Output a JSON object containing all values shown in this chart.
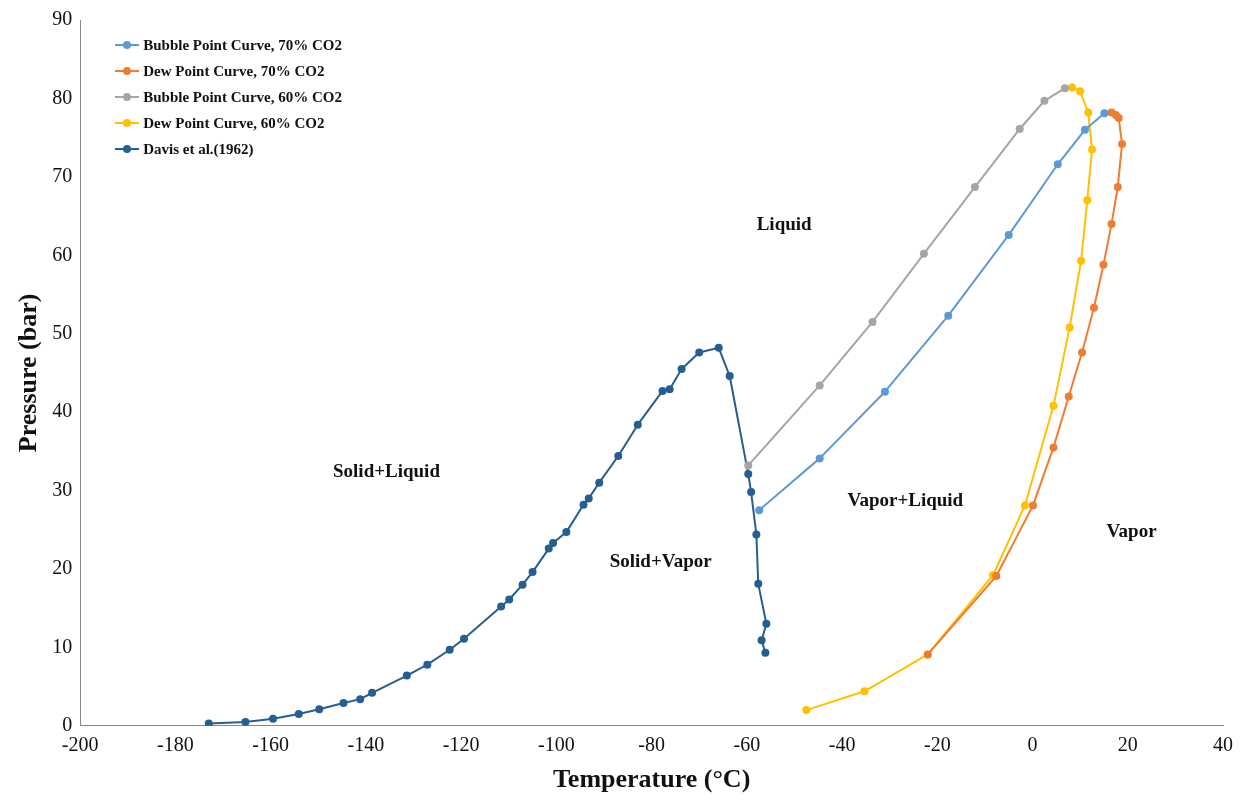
{
  "chart_data": {
    "type": "line",
    "xlabel": "Temperature (°C)",
    "ylabel": "Pressure (bar)",
    "xlim": [
      -200,
      40
    ],
    "xticks": [
      -200,
      -180,
      -160,
      -140,
      -120,
      -100,
      -80,
      -60,
      -40,
      -20,
      0,
      20,
      40
    ],
    "ylim": [
      0,
      90
    ],
    "yticks": [
      0,
      10,
      20,
      30,
      40,
      50,
      60,
      70,
      80,
      90
    ],
    "grid": false,
    "legend": "top left",
    "marker": "circle",
    "line_style": "solid",
    "series": [
      {
        "name": "Bubble Point Curve, 70% CO2",
        "color": "#5b9bd5",
        "x": [
          -57.4,
          -44.7,
          -31.0,
          -17.7,
          -5.0,
          5.3,
          11.0,
          15.1
        ],
        "values": [
          27.5,
          34.1,
          42.6,
          52.3,
          62.6,
          71.6,
          76.0,
          78.1
        ]
      },
      {
        "name": "Dew Point Curve, 70% CO2",
        "color": "#ed7d31",
        "x": [
          -22.0,
          -7.6,
          0.1,
          4.4,
          7.6,
          10.4,
          12.9,
          14.9,
          16.6,
          17.9,
          18.8,
          18.1,
          17.5,
          16.6
        ],
        "values": [
          9.1,
          19.1,
          28.1,
          35.5,
          42.0,
          47.6,
          53.3,
          58.8,
          64.0,
          68.7,
          74.2,
          77.5,
          77.9,
          78.2
        ]
      },
      {
        "name": "Bubble Point Curve, 60% CO2",
        "color": "#a5a5a5",
        "x": [
          -59.7,
          -44.7,
          -33.6,
          -22.8,
          -12.1,
          -2.7,
          2.5,
          6.8
        ],
        "values": [
          33.2,
          43.4,
          51.5,
          60.2,
          68.7,
          76.1,
          79.7,
          81.3
        ]
      },
      {
        "name": "Dew Point Curve, 60% CO2",
        "color": "#ffc000",
        "x": [
          -47.5,
          -35.3,
          -22.0,
          -8.3,
          -1.6,
          4.4,
          7.8,
          10.2,
          11.5,
          12.5,
          11.7,
          10.0,
          8.3
        ],
        "values": [
          2.0,
          4.4,
          9.1,
          19.2,
          28.1,
          40.8,
          50.8,
          59.3,
          67.0,
          73.5,
          78.2,
          80.9,
          81.4
        ]
      },
      {
        "name": "Davis et al.(1962)",
        "color": "#255e91",
        "x": [
          -173.0,
          -165.3,
          -159.5,
          -154.1,
          -149.8,
          -144.7,
          -141.2,
          -138.7,
          -131.4,
          -127.1,
          -122.4,
          -119.4,
          -111.6,
          -109.9,
          -107.1,
          -105.0,
          -101.6,
          -100.7,
          -97.9,
          -94.3,
          -93.2,
          -91.0,
          -87.0,
          -82.9,
          -77.7,
          -76.2,
          -73.7,
          -70.0,
          -65.9,
          -63.6,
          -59.7,
          -59.1,
          -58.0,
          -57.6,
          -55.9,
          -56.9,
          -56.1
        ],
        "values": [
          0.3,
          0.5,
          0.9,
          1.5,
          2.1,
          2.9,
          3.4,
          4.2,
          6.4,
          7.8,
          9.7,
          11.1,
          15.2,
          16.1,
          18.0,
          19.6,
          22.6,
          23.3,
          24.7,
          28.2,
          29.0,
          31.0,
          34.4,
          38.4,
          42.7,
          42.9,
          45.5,
          47.6,
          48.2,
          44.6,
          32.1,
          29.8,
          24.4,
          18.1,
          13.0,
          10.9,
          9.3
        ]
      }
    ],
    "annotations": [
      "Solid+Liquid",
      "Solid+Vapor",
      "Liquid",
      "Vapor+Liquid",
      "Vapor"
    ]
  }
}
